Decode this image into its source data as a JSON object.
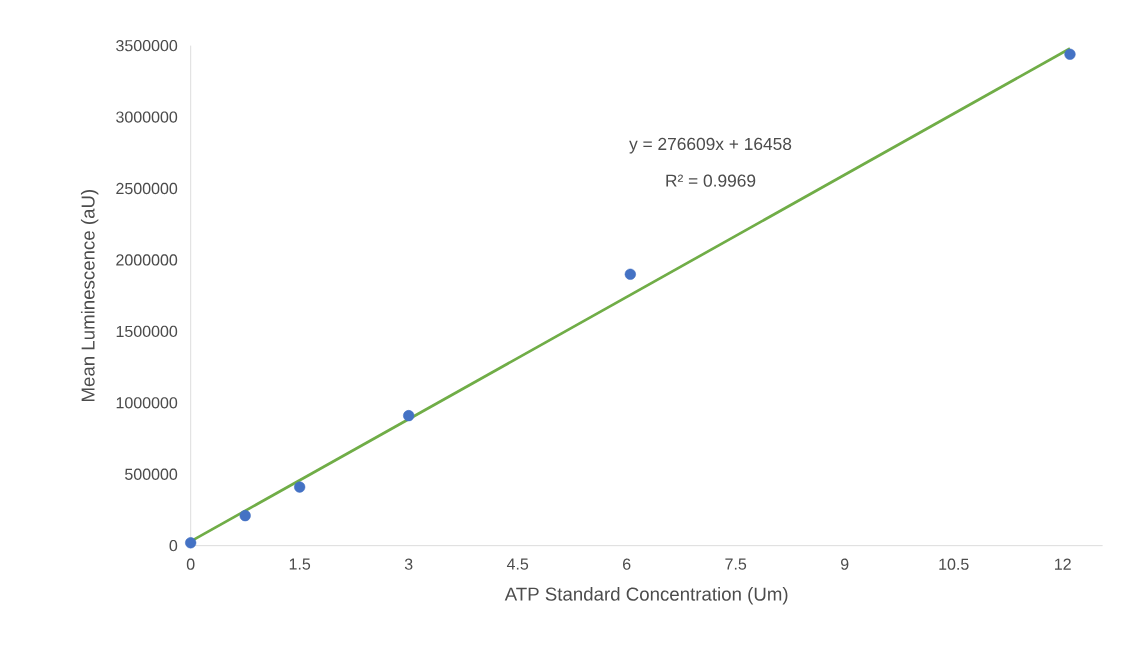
{
  "chart_data": {
    "type": "scatter",
    "xlabel": "ATP Standard Concentration (Um)",
    "ylabel": "Mean Luminescence  (aU)",
    "x": [
      0,
      0.75,
      1.5,
      3,
      6.05,
      12.1
    ],
    "series": [
      {
        "color": "#4472c4",
        "marker": "circle",
        "values": [
          20000,
          210000,
          410000,
          910000,
          1900000,
          3440000
        ]
      },
      {
        "type": "line",
        "color": "#70ad47",
        "marker": "none",
        "x": [
          0,
          12.1
        ],
        "values": [
          30000,
          3480000
        ]
      }
    ],
    "annotations": [
      "y = 276609x + 16458",
      "R² = 0.9969"
    ],
    "xlim": [
      0,
      12.55
    ],
    "ylim": [
      0,
      3500000
    ],
    "xticks": [
      0,
      1.5,
      3,
      4.5,
      6,
      7.5,
      9,
      10.5,
      12
    ],
    "yticks": [
      0,
      500000,
      1000000,
      1500000,
      2000000,
      2500000,
      3000000,
      3500000
    ]
  }
}
